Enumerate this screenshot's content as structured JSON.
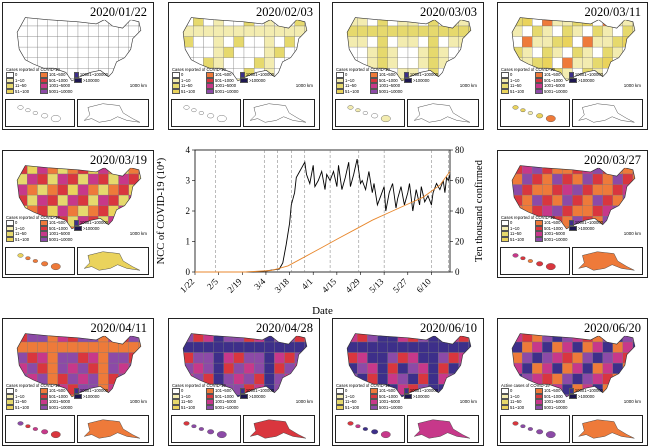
{
  "colors": {
    "white": "#ffffff",
    "c1": "#f3ecb0",
    "c2": "#e6d96d",
    "c3": "#ead35c",
    "orange": "#ee7a3a",
    "red": "#d9363e",
    "magenta": "#c7388a",
    "purple": "#8c4aa7",
    "indigo": "#3d2f8a",
    "line_orange": "#e8872c"
  },
  "legend": {
    "title": "Cases reported of COVID-19",
    "title_active": "Active cases of COVID-19",
    "items": [
      "0",
      "1~10",
      "11~50",
      "51~100",
      "101~500",
      "501~1000",
      "1001~5000",
      "5001~10000",
      "10001~100000",
      ">100000"
    ]
  },
  "scale_km": "1000 km",
  "panels": [
    {
      "date": "2020/01/22",
      "level": 0
    },
    {
      "date": "2020/02/03",
      "level": 1
    },
    {
      "date": "2020/03/03",
      "level": 2
    },
    {
      "date": "2020/03/11",
      "level": 3
    },
    {
      "date": "2020/03/19",
      "level": 4
    },
    {
      "date": "2020/03/27",
      "level": 5
    },
    {
      "date": "2020/04/11",
      "level": 6
    },
    {
      "date": "2020/04/28",
      "level": 7
    },
    {
      "date": "2020/06/10",
      "level": 8
    },
    {
      "date": "2020/06/20",
      "level": 9
    }
  ],
  "chart_data": {
    "type": "line",
    "title": "",
    "xlabel": "Date",
    "ylabel_left": "NCC of COVID-19 (10⁴)",
    "ylabel_right": "Ten thousand confirmed",
    "x_ticks": [
      "1/22",
      "2/5",
      "2/19",
      "3/4",
      "3/18",
      "4/1",
      "4/15",
      "4/29",
      "5/13",
      "5/27",
      "6/10"
    ],
    "ylim_left": [
      0,
      4
    ],
    "yticks_left": [
      0,
      1,
      2,
      3,
      4
    ],
    "ylim_right": [
      0,
      80
    ],
    "yticks_right": [
      0,
      20,
      40,
      60,
      80
    ],
    "vertical_dashed_lines_at": [
      "2/3",
      "3/3",
      "3/11",
      "3/19",
      "3/27",
      "4/11",
      "4/28",
      "5/13",
      "6/10",
      "6/20"
    ],
    "series": [
      {
        "axis": "left",
        "color": "black",
        "x_day_index": [
          0,
          10,
          20,
          30,
          40,
          50,
          52,
          54,
          56,
          57,
          59,
          60,
          62,
          63,
          65,
          66,
          68,
          70,
          71,
          73,
          75,
          77,
          78,
          80,
          82,
          84,
          85,
          87,
          89,
          91,
          92,
          94,
          96,
          98,
          99,
          101,
          103,
          105,
          106,
          108,
          110,
          112,
          113,
          115,
          117,
          119,
          120,
          122,
          124,
          126,
          127,
          129,
          131,
          133,
          134,
          136,
          138,
          140,
          141,
          143,
          145,
          147,
          148,
          149,
          150,
          151
        ],
        "y": [
          0,
          0,
          0,
          0,
          0.02,
          0.1,
          0.3,
          0.9,
          1.6,
          2.2,
          2.6,
          3.1,
          3.3,
          3.4,
          3.6,
          3.2,
          2.9,
          3.5,
          2.8,
          3.0,
          3.3,
          2.7,
          3.2,
          3.0,
          3.3,
          2.8,
          3.5,
          2.7,
          3.1,
          3.6,
          2.8,
          3.2,
          3.7,
          2.9,
          3.0,
          2.7,
          3.3,
          2.6,
          2.9,
          2.2,
          2.5,
          2.8,
          2.0,
          2.6,
          2.9,
          2.1,
          2.4,
          2.8,
          2.2,
          2.6,
          2.9,
          2.0,
          2.7,
          2.2,
          2.8,
          2.3,
          2.5,
          2.2,
          2.6,
          2.9,
          2.7,
          3.0,
          2.6,
          3.1,
          3.0,
          3.2
        ]
      },
      {
        "axis": "right",
        "color": "orange",
        "x_day_index": [
          0,
          30,
          45,
          55,
          65,
          75,
          85,
          95,
          105,
          115,
          125,
          135,
          145,
          151
        ],
        "y": [
          0,
          0,
          1,
          4,
          10,
          16,
          22,
          28,
          34,
          39,
          44,
          49,
          57,
          66
        ]
      }
    ]
  }
}
